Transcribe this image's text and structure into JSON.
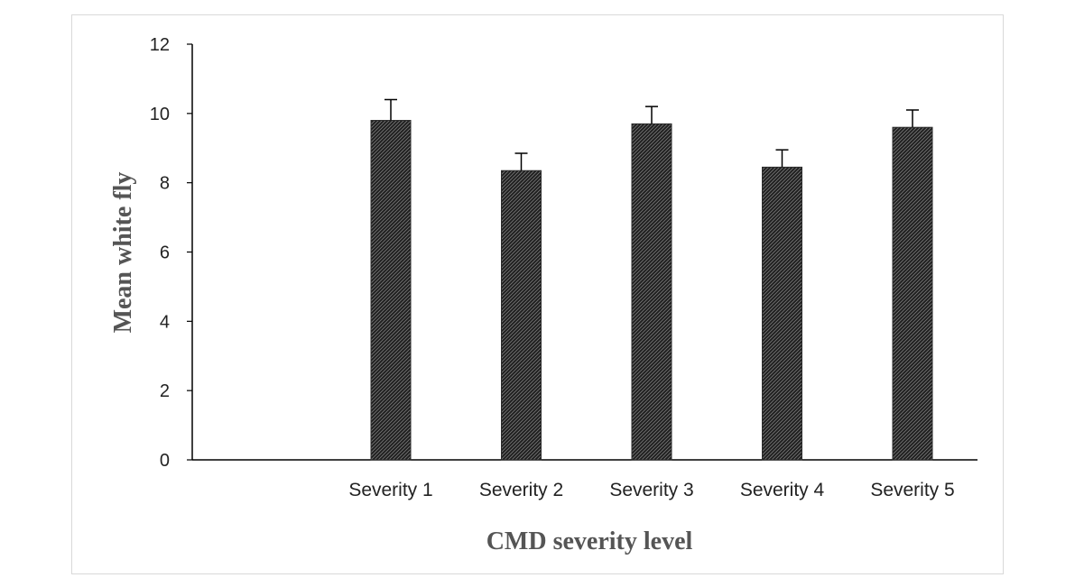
{
  "chart_data": {
    "type": "bar",
    "title": "",
    "xlabel": "CMD severity level",
    "ylabel": "Mean white fly",
    "categories": [
      "Severity 1",
      "Severity 2",
      "Severity 3",
      "Severity 4",
      "Severity 5"
    ],
    "values": [
      9.8,
      8.35,
      9.7,
      8.45,
      9.6
    ],
    "error_bars": [
      0.6,
      0.5,
      0.5,
      0.5,
      0.5
    ],
    "yticks": [
      "0",
      "2",
      "4",
      "6",
      "8",
      "10",
      "12"
    ],
    "ylim": [
      0,
      12
    ],
    "grid": false,
    "legend": "none",
    "colors": {
      "bar": "#2b2b2b",
      "bar_hatch": "#8a8a8a",
      "axis": "#000000",
      "text": "#222222",
      "axis_title": "#555555"
    }
  }
}
